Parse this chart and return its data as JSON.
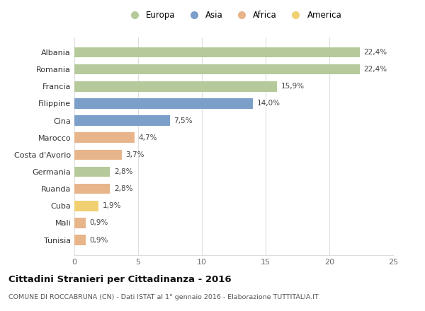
{
  "categories": [
    "Tunisia",
    "Mali",
    "Cuba",
    "Ruanda",
    "Germania",
    "Costa d'Avorio",
    "Marocco",
    "Cina",
    "Filippine",
    "Francia",
    "Romania",
    "Albania"
  ],
  "values": [
    0.9,
    0.9,
    1.9,
    2.8,
    2.8,
    3.7,
    4.7,
    7.5,
    14.0,
    15.9,
    22.4,
    22.4
  ],
  "labels": [
    "0,9%",
    "0,9%",
    "1,9%",
    "2,8%",
    "2,8%",
    "3,7%",
    "4,7%",
    "7,5%",
    "14,0%",
    "15,9%",
    "22,4%",
    "22,4%"
  ],
  "continents": [
    "Africa",
    "Africa",
    "America",
    "Africa",
    "Europa",
    "Africa",
    "Africa",
    "Asia",
    "Asia",
    "Europa",
    "Europa",
    "Europa"
  ],
  "colors": {
    "Europa": "#b5c99a",
    "Asia": "#7b9fc8",
    "Africa": "#e8b48a",
    "America": "#f0d070"
  },
  "legend_labels": [
    "Europa",
    "Asia",
    "Africa",
    "America"
  ],
  "legend_colors": [
    "#b5c99a",
    "#7b9fc8",
    "#e8b48a",
    "#f0d070"
  ],
  "title": "Cittadini Stranieri per Cittadinanza - 2016",
  "subtitle": "COMUNE DI ROCCABRUNA (CN) - Dati ISTAT al 1° gennaio 2016 - Elaborazione TUTTITALIA.IT",
  "xlim": [
    0,
    25
  ],
  "xticks": [
    0,
    5,
    10,
    15,
    20,
    25
  ],
  "background_color": "#ffffff",
  "grid_color": "#dddddd",
  "bar_height": 0.6
}
